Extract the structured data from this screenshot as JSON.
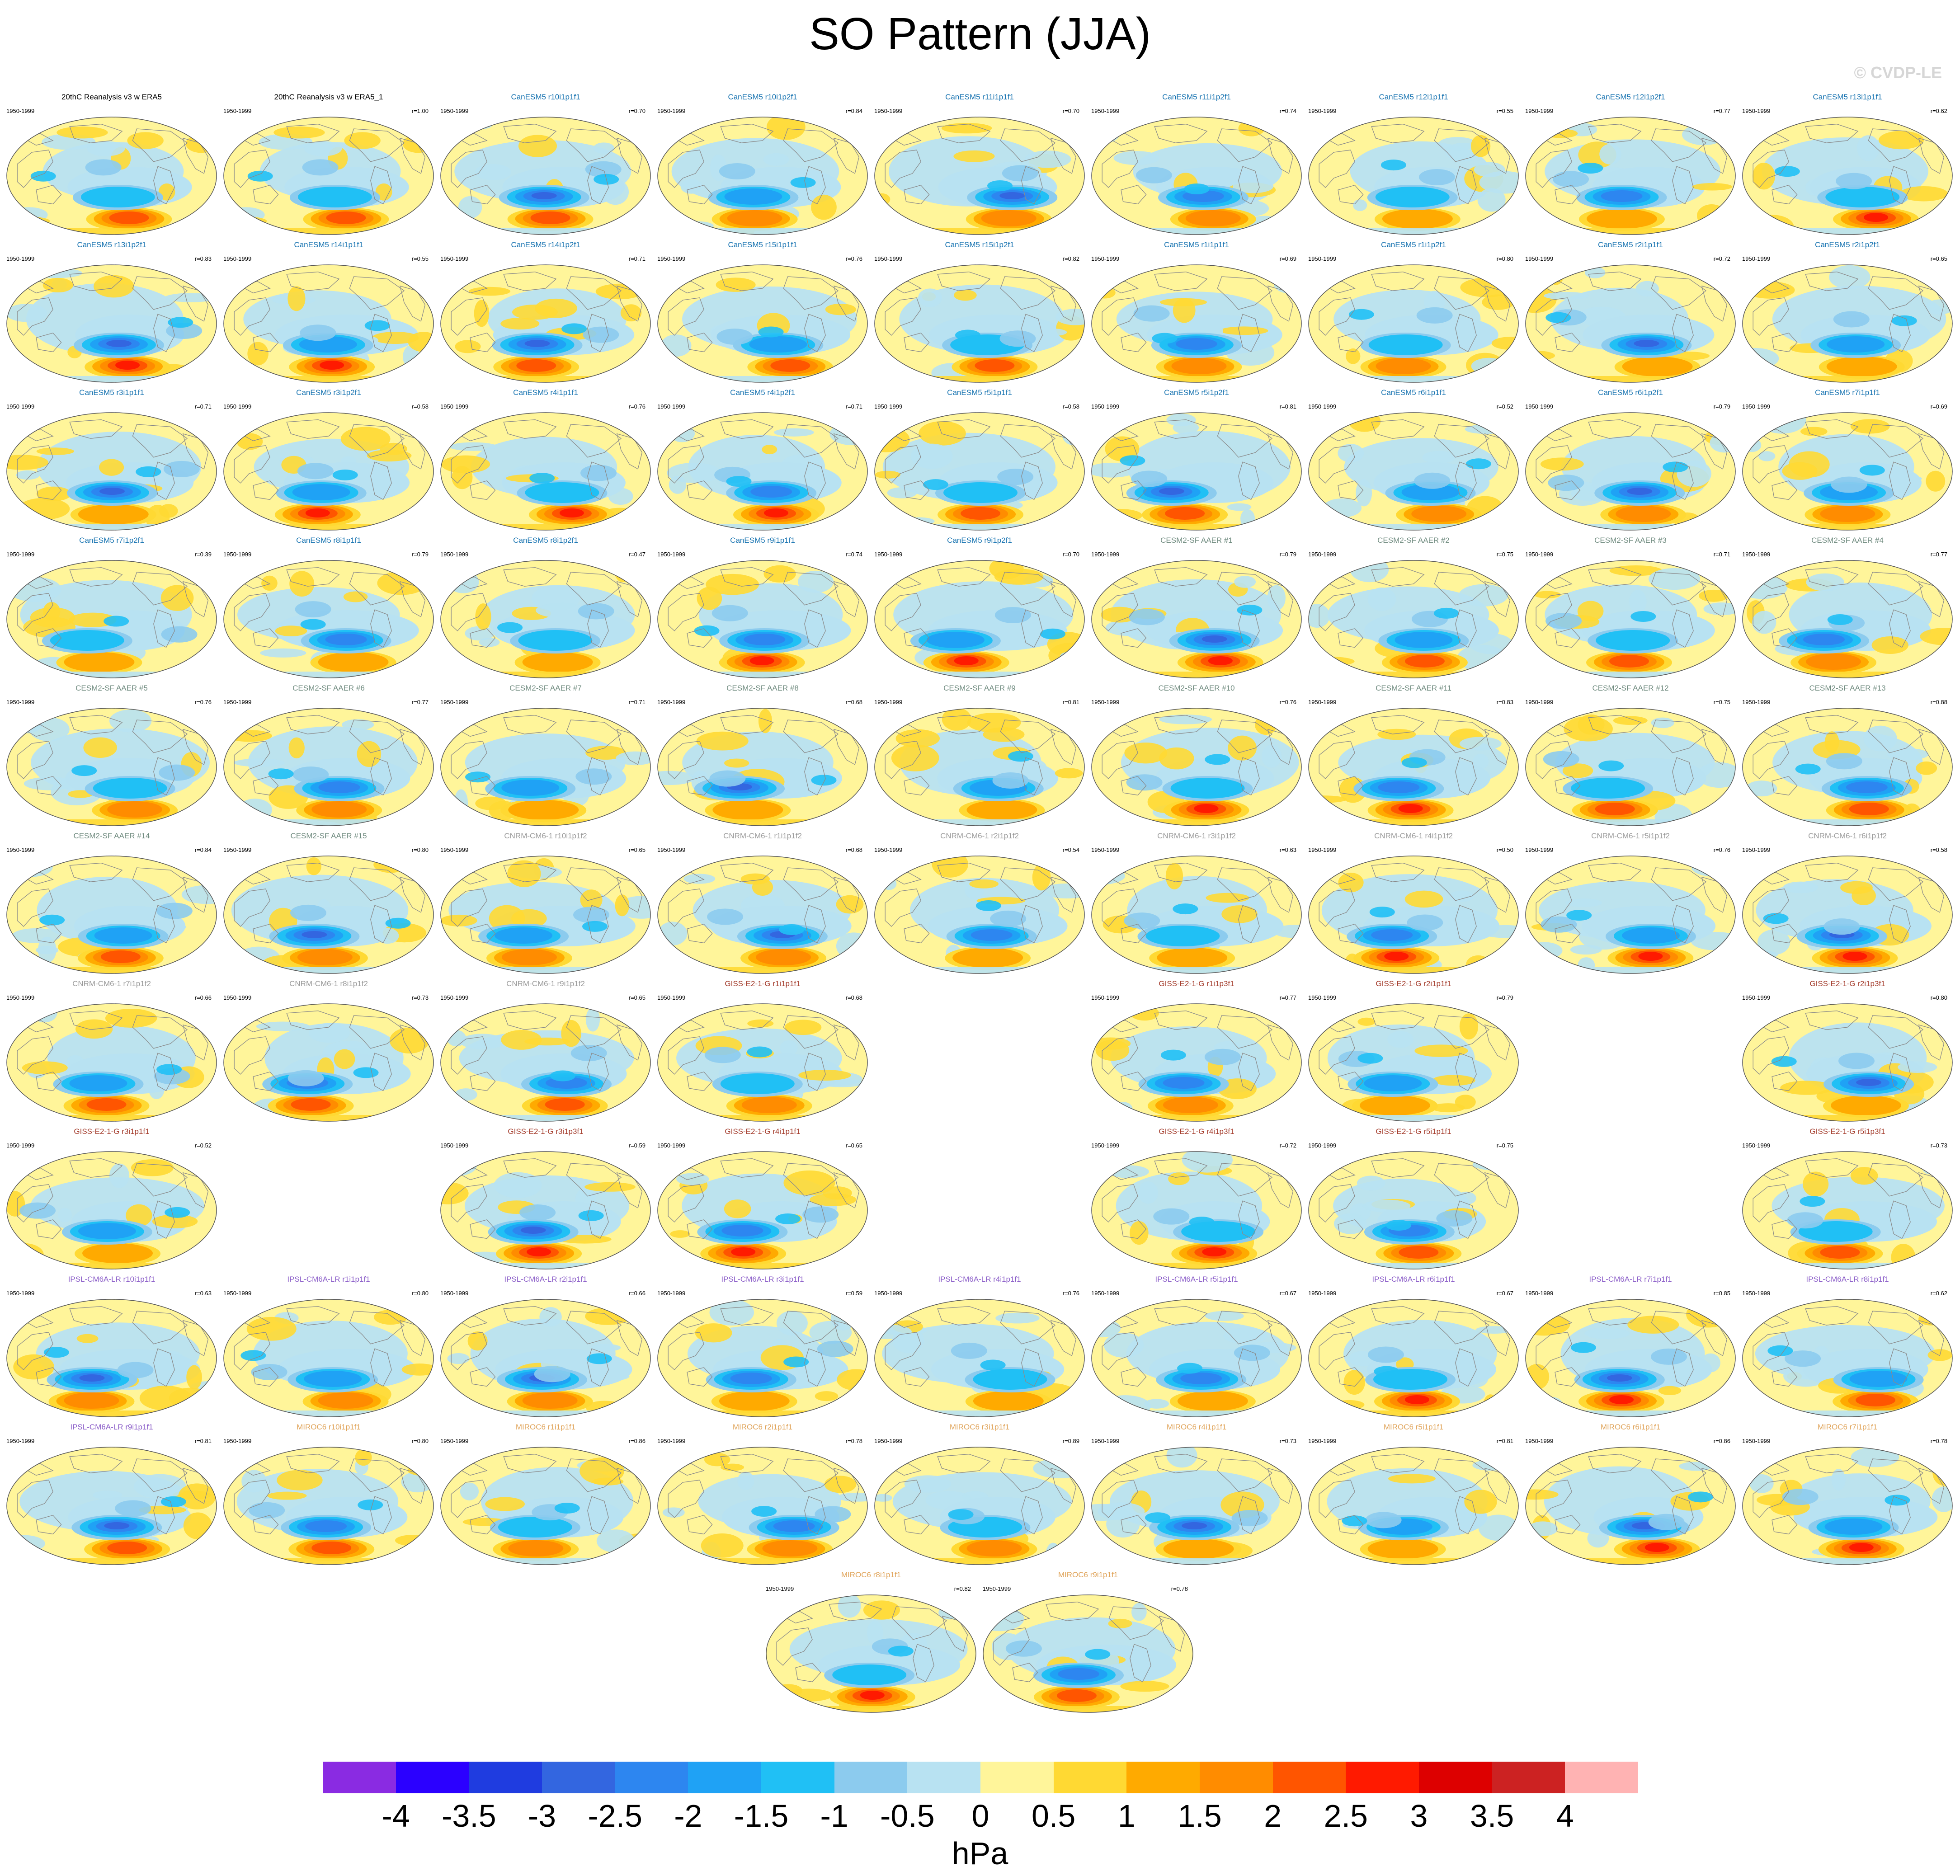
{
  "title": "SO Pattern (JJA)",
  "credit": "© CVDP-LE",
  "period": "1950-1999",
  "colors": {
    "model_title": {
      "obs": "#000000",
      "CanESM5": "#1572b0",
      "CESM2-SF AAER": "#6e8a7e",
      "CNRM-CM6-1": "#9a9a9a",
      "GISS-E2-1-G": "#a33a2a",
      "IPSL-CM6A-LR": "#8a5cc8",
      "MIROC6": "#e0a45a"
    },
    "ocean_neutral": "#fff59a",
    "land_line": "#8a8a8a"
  },
  "panels": [
    {
      "title": "20thC Reanalysis v3 w ERA5",
      "r": "",
      "group": "obs",
      "var": 0
    },
    {
      "title": "20thC Reanalysis v3 w ERA5_1",
      "r": "r=1.00",
      "group": "obs",
      "var": 0
    },
    {
      "title": "CanESM5 r10i1p1f1",
      "r": "r=0.70",
      "group": "CanESM5",
      "var": 1
    },
    {
      "title": "CanESM5 r10i1p2f1",
      "r": "r=0.84",
      "group": "CanESM5",
      "var": 2
    },
    {
      "title": "CanESM5 r11i1p1f1",
      "r": "r=0.70",
      "group": "CanESM5",
      "var": 3
    },
    {
      "title": "CanESM5 r11i1p2f1",
      "r": "r=0.74",
      "group": "CanESM5",
      "var": 4
    },
    {
      "title": "CanESM5 r12i1p1f1",
      "r": "r=0.55",
      "group": "CanESM5",
      "var": 5
    },
    {
      "title": "CanESM5 r12i1p2f1",
      "r": "r=0.77",
      "group": "CanESM5",
      "var": 6
    },
    {
      "title": "CanESM5 r13i1p1f1",
      "r": "r=0.62",
      "group": "CanESM5",
      "var": 7
    },
    {
      "title": "CanESM5 r13i1p2f1",
      "r": "r=0.83",
      "group": "CanESM5",
      "var": 8
    },
    {
      "title": "CanESM5 r14i1p1f1",
      "r": "r=0.55",
      "group": "CanESM5",
      "var": 9
    },
    {
      "title": "CanESM5 r14i1p2f1",
      "r": "r=0.71",
      "group": "CanESM5",
      "var": 10
    },
    {
      "title": "CanESM5 r15i1p1f1",
      "r": "r=0.76",
      "group": "CanESM5",
      "var": 11
    },
    {
      "title": "CanESM5 r15i1p2f1",
      "r": "r=0.82",
      "group": "CanESM5",
      "var": 12
    },
    {
      "title": "CanESM5 r1i1p1f1",
      "r": "r=0.69",
      "group": "CanESM5",
      "var": 13
    },
    {
      "title": "CanESM5 r1i1p2f1",
      "r": "r=0.80",
      "group": "CanESM5",
      "var": 14
    },
    {
      "title": "CanESM5 r2i1p1f1",
      "r": "r=0.72",
      "group": "CanESM5",
      "var": 15
    },
    {
      "title": "CanESM5 r2i1p2f1",
      "r": "r=0.65",
      "group": "CanESM5",
      "var": 16
    },
    {
      "title": "CanESM5 r3i1p1f1",
      "r": "r=0.71",
      "group": "CanESM5",
      "var": 17
    },
    {
      "title": "CanESM5 r3i1p2f1",
      "r": "r=0.58",
      "group": "CanESM5",
      "var": 18
    },
    {
      "title": "CanESM5 r4i1p1f1",
      "r": "r=0.76",
      "group": "CanESM5",
      "var": 19
    },
    {
      "title": "CanESM5 r4i1p2f1",
      "r": "r=0.71",
      "group": "CanESM5",
      "var": 20
    },
    {
      "title": "CanESM5 r5i1p1f1",
      "r": "r=0.58",
      "group": "CanESM5",
      "var": 21
    },
    {
      "title": "CanESM5 r5i1p2f1",
      "r": "r=0.81",
      "group": "CanESM5",
      "var": 22
    },
    {
      "title": "CanESM5 r6i1p1f1",
      "r": "r=0.52",
      "group": "CanESM5",
      "var": 23
    },
    {
      "title": "CanESM5 r6i1p2f1",
      "r": "r=0.79",
      "group": "CanESM5",
      "var": 24
    },
    {
      "title": "CanESM5 r7i1p1f1",
      "r": "r=0.69",
      "group": "CanESM5",
      "var": 25
    },
    {
      "title": "CanESM5 r7i1p2f1",
      "r": "r=0.39",
      "group": "CanESM5",
      "var": 26
    },
    {
      "title": "CanESM5 r8i1p1f1",
      "r": "r=0.79",
      "group": "CanESM5",
      "var": 27
    },
    {
      "title": "CanESM5 r8i1p2f1",
      "r": "r=0.47",
      "group": "CanESM5",
      "var": 28
    },
    {
      "title": "CanESM5 r9i1p1f1",
      "r": "r=0.74",
      "group": "CanESM5",
      "var": 29
    },
    {
      "title": "CanESM5 r9i1p2f1",
      "r": "r=0.70",
      "group": "CanESM5",
      "var": 30
    },
    {
      "title": "CESM2-SF AAER #1",
      "r": "r=0.79",
      "group": "CESM2-SF AAER",
      "var": 31
    },
    {
      "title": "CESM2-SF AAER #2",
      "r": "r=0.75",
      "group": "CESM2-SF AAER",
      "var": 32
    },
    {
      "title": "CESM2-SF AAER #3",
      "r": "r=0.71",
      "group": "CESM2-SF AAER",
      "var": 33
    },
    {
      "title": "CESM2-SF AAER #4",
      "r": "r=0.77",
      "group": "CESM2-SF AAER",
      "var": 34
    },
    {
      "title": "CESM2-SF AAER #5",
      "r": "r=0.76",
      "group": "CESM2-SF AAER",
      "var": 35
    },
    {
      "title": "CESM2-SF AAER #6",
      "r": "r=0.77",
      "group": "CESM2-SF AAER",
      "var": 36
    },
    {
      "title": "CESM2-SF AAER #7",
      "r": "r=0.71",
      "group": "CESM2-SF AAER",
      "var": 37
    },
    {
      "title": "CESM2-SF AAER #8",
      "r": "r=0.68",
      "group": "CESM2-SF AAER",
      "var": 38
    },
    {
      "title": "CESM2-SF AAER #9",
      "r": "r=0.81",
      "group": "CESM2-SF AAER",
      "var": 39
    },
    {
      "title": "CESM2-SF AAER #10",
      "r": "r=0.76",
      "group": "CESM2-SF AAER",
      "var": 40
    },
    {
      "title": "CESM2-SF AAER #11",
      "r": "r=0.83",
      "group": "CESM2-SF AAER",
      "var": 41
    },
    {
      "title": "CESM2-SF AAER #12",
      "r": "r=0.75",
      "group": "CESM2-SF AAER",
      "var": 42
    },
    {
      "title": "CESM2-SF AAER #13",
      "r": "r=0.88",
      "group": "CESM2-SF AAER",
      "var": 43
    },
    {
      "title": "CESM2-SF AAER #14",
      "r": "r=0.84",
      "group": "CESM2-SF AAER",
      "var": 44
    },
    {
      "title": "CESM2-SF AAER #15",
      "r": "r=0.80",
      "group": "CESM2-SF AAER",
      "var": 45
    },
    {
      "title": "CNRM-CM6-1 r10i1p1f2",
      "r": "r=0.65",
      "group": "CNRM-CM6-1",
      "var": 46
    },
    {
      "title": "CNRM-CM6-1 r1i1p1f2",
      "r": "r=0.68",
      "group": "CNRM-CM6-1",
      "var": 47
    },
    {
      "title": "CNRM-CM6-1 r2i1p1f2",
      "r": "r=0.54",
      "group": "CNRM-CM6-1",
      "var": 48
    },
    {
      "title": "CNRM-CM6-1 r3i1p1f2",
      "r": "r=0.63",
      "group": "CNRM-CM6-1",
      "var": 49
    },
    {
      "title": "CNRM-CM6-1 r4i1p1f2",
      "r": "r=0.50",
      "group": "CNRM-CM6-1",
      "var": 50
    },
    {
      "title": "CNRM-CM6-1 r5i1p1f2",
      "r": "r=0.76",
      "group": "CNRM-CM6-1",
      "var": 51
    },
    {
      "title": "CNRM-CM6-1 r6i1p1f2",
      "r": "r=0.58",
      "group": "CNRM-CM6-1",
      "var": 52
    },
    {
      "title": "CNRM-CM6-1 r7i1p1f2",
      "r": "r=0.66",
      "group": "CNRM-CM6-1",
      "var": 53
    },
    {
      "title": "CNRM-CM6-1 r8i1p1f2",
      "r": "r=0.73",
      "group": "CNRM-CM6-1",
      "var": 54
    },
    {
      "title": "CNRM-CM6-1 r9i1p1f2",
      "r": "r=0.65",
      "group": "CNRM-CM6-1",
      "var": 55
    },
    {
      "title": "GISS-E2-1-G r1i1p1f1",
      "r": "r=0.68",
      "group": "GISS-E2-1-G",
      "var": 56
    },
    {
      "title": "GISS-E2-1-G r1i1p3f1",
      "r": "r=0.77",
      "group": "GISS-E2-1-G",
      "var": 57
    },
    {
      "title": "GISS-E2-1-G r2i1p1f1",
      "r": "r=0.79",
      "group": "GISS-E2-1-G",
      "var": 58
    },
    {
      "title": "GISS-E2-1-G r2i1p3f1",
      "r": "r=0.80",
      "group": "GISS-E2-1-G",
      "var": 59
    },
    {
      "title": "GISS-E2-1-G r3i1p1f1",
      "r": "r=0.52",
      "group": "GISS-E2-1-G",
      "var": 60
    },
    {
      "title": "GISS-E2-1-G r3i1p3f1",
      "r": "r=0.59",
      "group": "GISS-E2-1-G",
      "var": 61
    },
    {
      "title": "GISS-E2-1-G r4i1p1f1",
      "r": "r=0.65",
      "group": "GISS-E2-1-G",
      "var": 62
    },
    {
      "title": "GISS-E2-1-G r4i1p3f1",
      "r": "r=0.72",
      "group": "GISS-E2-1-G",
      "var": 63
    },
    {
      "title": "GISS-E2-1-G r5i1p1f1",
      "r": "r=0.75",
      "group": "GISS-E2-1-G",
      "var": 64
    },
    {
      "title": "GISS-E2-1-G r5i1p3f1",
      "r": "r=0.73",
      "group": "GISS-E2-1-G",
      "var": 65
    },
    {
      "title": "IPSL-CM6A-LR r10i1p1f1",
      "r": "r=0.63",
      "group": "IPSL-CM6A-LR",
      "var": 66
    },
    {
      "title": "IPSL-CM6A-LR r1i1p1f1",
      "r": "r=0.80",
      "group": "IPSL-CM6A-LR",
      "var": 67
    },
    {
      "title": "IPSL-CM6A-LR r2i1p1f1",
      "r": "r=0.66",
      "group": "IPSL-CM6A-LR",
      "var": 68
    },
    {
      "title": "IPSL-CM6A-LR r3i1p1f1",
      "r": "r=0.59",
      "group": "IPSL-CM6A-LR",
      "var": 69
    },
    {
      "title": "IPSL-CM6A-LR r4i1p1f1",
      "r": "r=0.76",
      "group": "IPSL-CM6A-LR",
      "var": 70
    },
    {
      "title": "IPSL-CM6A-LR r5i1p1f1",
      "r": "r=0.67",
      "group": "IPSL-CM6A-LR",
      "var": 71
    },
    {
      "title": "IPSL-CM6A-LR r6i1p1f1",
      "r": "r=0.67",
      "group": "IPSL-CM6A-LR",
      "var": 72
    },
    {
      "title": "IPSL-CM6A-LR r7i1p1f1",
      "r": "r=0.85",
      "group": "IPSL-CM6A-LR",
      "var": 73
    },
    {
      "title": "IPSL-CM6A-LR r8i1p1f1",
      "r": "r=0.62",
      "group": "IPSL-CM6A-LR",
      "var": 74
    },
    {
      "title": "IPSL-CM6A-LR r9i1p1f1",
      "r": "r=0.81",
      "group": "IPSL-CM6A-LR",
      "var": 75
    },
    {
      "title": "MIROC6 r10i1p1f1",
      "r": "r=0.80",
      "group": "MIROC6",
      "var": 76
    },
    {
      "title": "MIROC6 r1i1p1f1",
      "r": "r=0.86",
      "group": "MIROC6",
      "var": 77
    },
    {
      "title": "MIROC6 r2i1p1f1",
      "r": "r=0.78",
      "group": "MIROC6",
      "var": 78
    },
    {
      "title": "MIROC6 r3i1p1f1",
      "r": "r=0.89",
      "group": "MIROC6",
      "var": 79
    },
    {
      "title": "MIROC6 r4i1p1f1",
      "r": "r=0.73",
      "group": "MIROC6",
      "var": 80
    },
    {
      "title": "MIROC6 r5i1p1f1",
      "r": "r=0.81",
      "group": "MIROC6",
      "var": 81
    },
    {
      "title": "MIROC6 r6i1p1f1",
      "r": "r=0.86",
      "group": "MIROC6",
      "var": 82
    },
    {
      "title": "MIROC6 r7i1p1f1",
      "r": "r=0.78",
      "group": "MIROC6",
      "var": 83
    },
    {
      "title": "MIROC6 r8i1p1f1",
      "r": "r=0.82",
      "group": "MIROC6",
      "var": 84
    },
    {
      "title": "MIROC6 r9i1p1f1",
      "r": "r=0.78",
      "group": "MIROC6",
      "var": 85
    }
  ],
  "colorbar": {
    "units": "hPa",
    "labels": [
      "-4",
      "-3.5",
      "-3",
      "-2.5",
      "-2",
      "-1.5",
      "-1",
      "-0.5",
      "0",
      "0.5",
      "1",
      "1.5",
      "2",
      "2.5",
      "3",
      "3.5",
      "4"
    ],
    "colors": [
      "#8a2be2",
      "#2b00ff",
      "#1f3ce0",
      "#3366e0",
      "#2d86f0",
      "#1fa2f5",
      "#20c0f5",
      "#8ccbee",
      "#b8e2f2",
      "#fff59a",
      "#ffd933",
      "#ffaa00",
      "#ff8c00",
      "#ff5500",
      "#ff1a00",
      "#dd0000",
      "#cc2222",
      "#ffb3b3"
    ]
  }
}
